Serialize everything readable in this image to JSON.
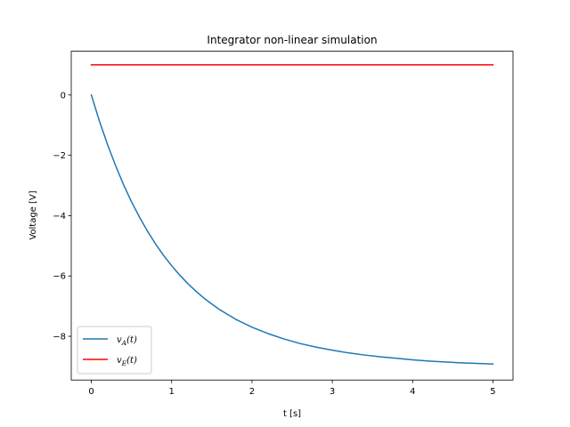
{
  "chart_data": {
    "type": "line",
    "title": "Integrator non-linear simulation",
    "xlabel": "t [s]",
    "ylabel": "Voltage [V]",
    "xlim": [
      -0.25,
      5.25
    ],
    "ylim": [
      -9.45,
      1.45
    ],
    "xticks": [
      0,
      1,
      2,
      3,
      4,
      5
    ],
    "yticks": [
      0,
      -2,
      -4,
      -6,
      -8
    ],
    "ytick_labels": [
      "0",
      "−2",
      "−4",
      "−6",
      "−8"
    ],
    "grid": false,
    "legend_position": "lower-left",
    "series": [
      {
        "name": "vA(t)",
        "legend_main": "v",
        "legend_sub": "A",
        "legend_rest": "(t)",
        "color": "#1f77b4",
        "x": [
          0,
          0.1,
          0.2,
          0.3,
          0.4,
          0.5,
          0.6,
          0.7,
          0.8,
          0.9,
          1.0,
          1.1,
          1.2,
          1.3,
          1.4,
          1.5,
          1.6,
          1.7,
          1.8,
          1.9,
          2.0,
          2.2,
          2.4,
          2.6,
          2.8,
          3.0,
          3.2,
          3.4,
          3.6,
          3.8,
          4.0,
          4.2,
          4.4,
          4.6,
          4.8,
          5.0
        ],
        "y": [
          0,
          -0.86,
          -1.63,
          -2.33,
          -2.97,
          -3.54,
          -4.05,
          -4.52,
          -4.94,
          -5.32,
          -5.66,
          -5.97,
          -6.25,
          -6.5,
          -6.73,
          -6.93,
          -7.12,
          -7.28,
          -7.44,
          -7.57,
          -7.7,
          -7.91,
          -8.09,
          -8.24,
          -8.36,
          -8.46,
          -8.55,
          -8.62,
          -8.68,
          -8.73,
          -8.78,
          -8.82,
          -8.85,
          -8.88,
          -8.9,
          -8.92
        ]
      },
      {
        "name": "vE(t)",
        "legend_main": "v",
        "legend_sub": "E",
        "legend_rest": "(t)",
        "color": "#ff0000",
        "x": [
          0,
          5
        ],
        "y": [
          1,
          1
        ]
      }
    ]
  }
}
